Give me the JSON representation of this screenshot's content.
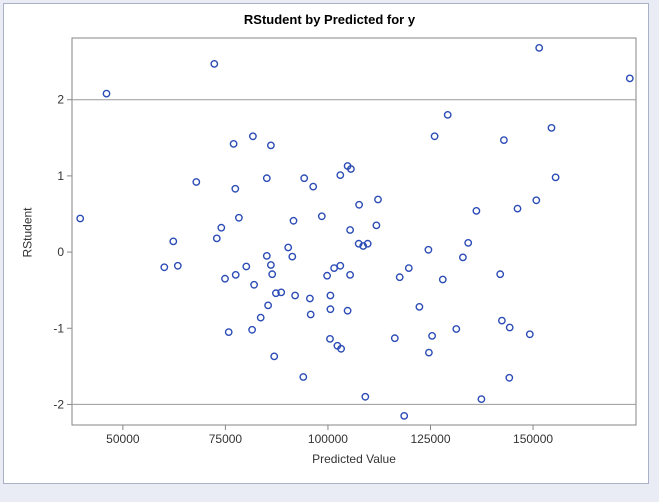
{
  "figure": {
    "outer_background": "#e9ecf4",
    "border_color": "#a9b1c6",
    "plot_background": "#ffffff"
  },
  "chart_data": {
    "type": "scatter",
    "title": "RStudent by Predicted for y",
    "xlabel": "Predicted Value",
    "ylabel": "RStudent",
    "x_ticks": [
      50000,
      75000,
      100000,
      125000,
      150000
    ],
    "x_tick_labels": [
      "50000",
      "75000",
      "100000",
      "125000",
      "150000"
    ],
    "y_ticks": [
      2,
      1,
      0,
      -1,
      -2
    ],
    "y_tick_labels": [
      "2",
      "1",
      "0",
      "-1",
      "-2"
    ],
    "xlim": [
      37600,
      175100
    ],
    "ylim": [
      -2.27,
      2.81
    ],
    "reference_lines_y": [
      2,
      -2
    ],
    "grid": false,
    "legend": "none",
    "marker": "open-circle",
    "marker_color": "#2b4bb5",
    "axis_color": "#868686",
    "reference_line_color": "#999999",
    "points": [
      [
        72300,
        2.47
      ],
      [
        46000,
        2.08
      ],
      [
        77000,
        1.42
      ],
      [
        81700,
        1.52
      ],
      [
        86100,
        1.4
      ],
      [
        126000,
        1.52
      ],
      [
        129200,
        1.8
      ],
      [
        151500,
        2.68
      ],
      [
        173600,
        2.28
      ],
      [
        154500,
        1.63
      ],
      [
        142900,
        1.47
      ],
      [
        67900,
        0.92
      ],
      [
        77400,
        0.83
      ],
      [
        39600,
        0.44
      ],
      [
        78300,
        0.45
      ],
      [
        74000,
        0.32
      ],
      [
        72900,
        0.18
      ],
      [
        62300,
        0.14
      ],
      [
        60100,
        -0.2
      ],
      [
        63400,
        -0.18
      ],
      [
        80100,
        -0.19
      ],
      [
        74900,
        -0.35
      ],
      [
        77500,
        -0.3
      ],
      [
        82000,
        -0.43
      ],
      [
        85100,
        0.97
      ],
      [
        94200,
        0.97
      ],
      [
        96400,
        0.86
      ],
      [
        103000,
        1.01
      ],
      [
        104800,
        1.13
      ],
      [
        105600,
        1.09
      ],
      [
        112200,
        0.69
      ],
      [
        107600,
        0.62
      ],
      [
        98500,
        0.47
      ],
      [
        91600,
        0.41
      ],
      [
        105400,
        0.29
      ],
      [
        111800,
        0.35
      ],
      [
        107500,
        0.11
      ],
      [
        108600,
        0.08
      ],
      [
        109700,
        0.11
      ],
      [
        90300,
        0.06
      ],
      [
        85100,
        -0.05
      ],
      [
        91300,
        -0.06
      ],
      [
        86100,
        -0.17
      ],
      [
        86400,
        -0.29
      ],
      [
        124500,
        0.03
      ],
      [
        119700,
        -0.21
      ],
      [
        103000,
        -0.18
      ],
      [
        101500,
        -0.21
      ],
      [
        99800,
        -0.31
      ],
      [
        105400,
        -0.3
      ],
      [
        117500,
        -0.33
      ],
      [
        128000,
        -0.36
      ],
      [
        155500,
        0.98
      ],
      [
        150800,
        0.68
      ],
      [
        146200,
        0.57
      ],
      [
        136200,
        0.54
      ],
      [
        134200,
        0.12
      ],
      [
        132900,
        -0.07
      ],
      [
        142000,
        -0.29
      ],
      [
        75800,
        -1.05
      ],
      [
        81500,
        -1.02
      ],
      [
        83600,
        -0.86
      ],
      [
        87300,
        -0.54
      ],
      [
        88600,
        -0.53
      ],
      [
        92000,
        -0.57
      ],
      [
        95600,
        -0.61
      ],
      [
        85400,
        -0.7
      ],
      [
        100600,
        -0.57
      ],
      [
        100600,
        -0.75
      ],
      [
        104800,
        -0.77
      ],
      [
        95800,
        -0.82
      ],
      [
        122300,
        -0.72
      ],
      [
        100500,
        -1.14
      ],
      [
        102300,
        -1.23
      ],
      [
        103200,
        -1.27
      ],
      [
        116300,
        -1.13
      ],
      [
        125400,
        -1.1
      ],
      [
        124600,
        -1.32
      ],
      [
        86900,
        -1.37
      ],
      [
        94000,
        -1.64
      ],
      [
        109100,
        -1.9
      ],
      [
        118600,
        -2.15
      ],
      [
        131300,
        -1.01
      ],
      [
        142400,
        -0.9
      ],
      [
        144300,
        -0.99
      ],
      [
        149200,
        -1.08
      ],
      [
        144200,
        -1.65
      ],
      [
        137400,
        -1.93
      ]
    ]
  }
}
